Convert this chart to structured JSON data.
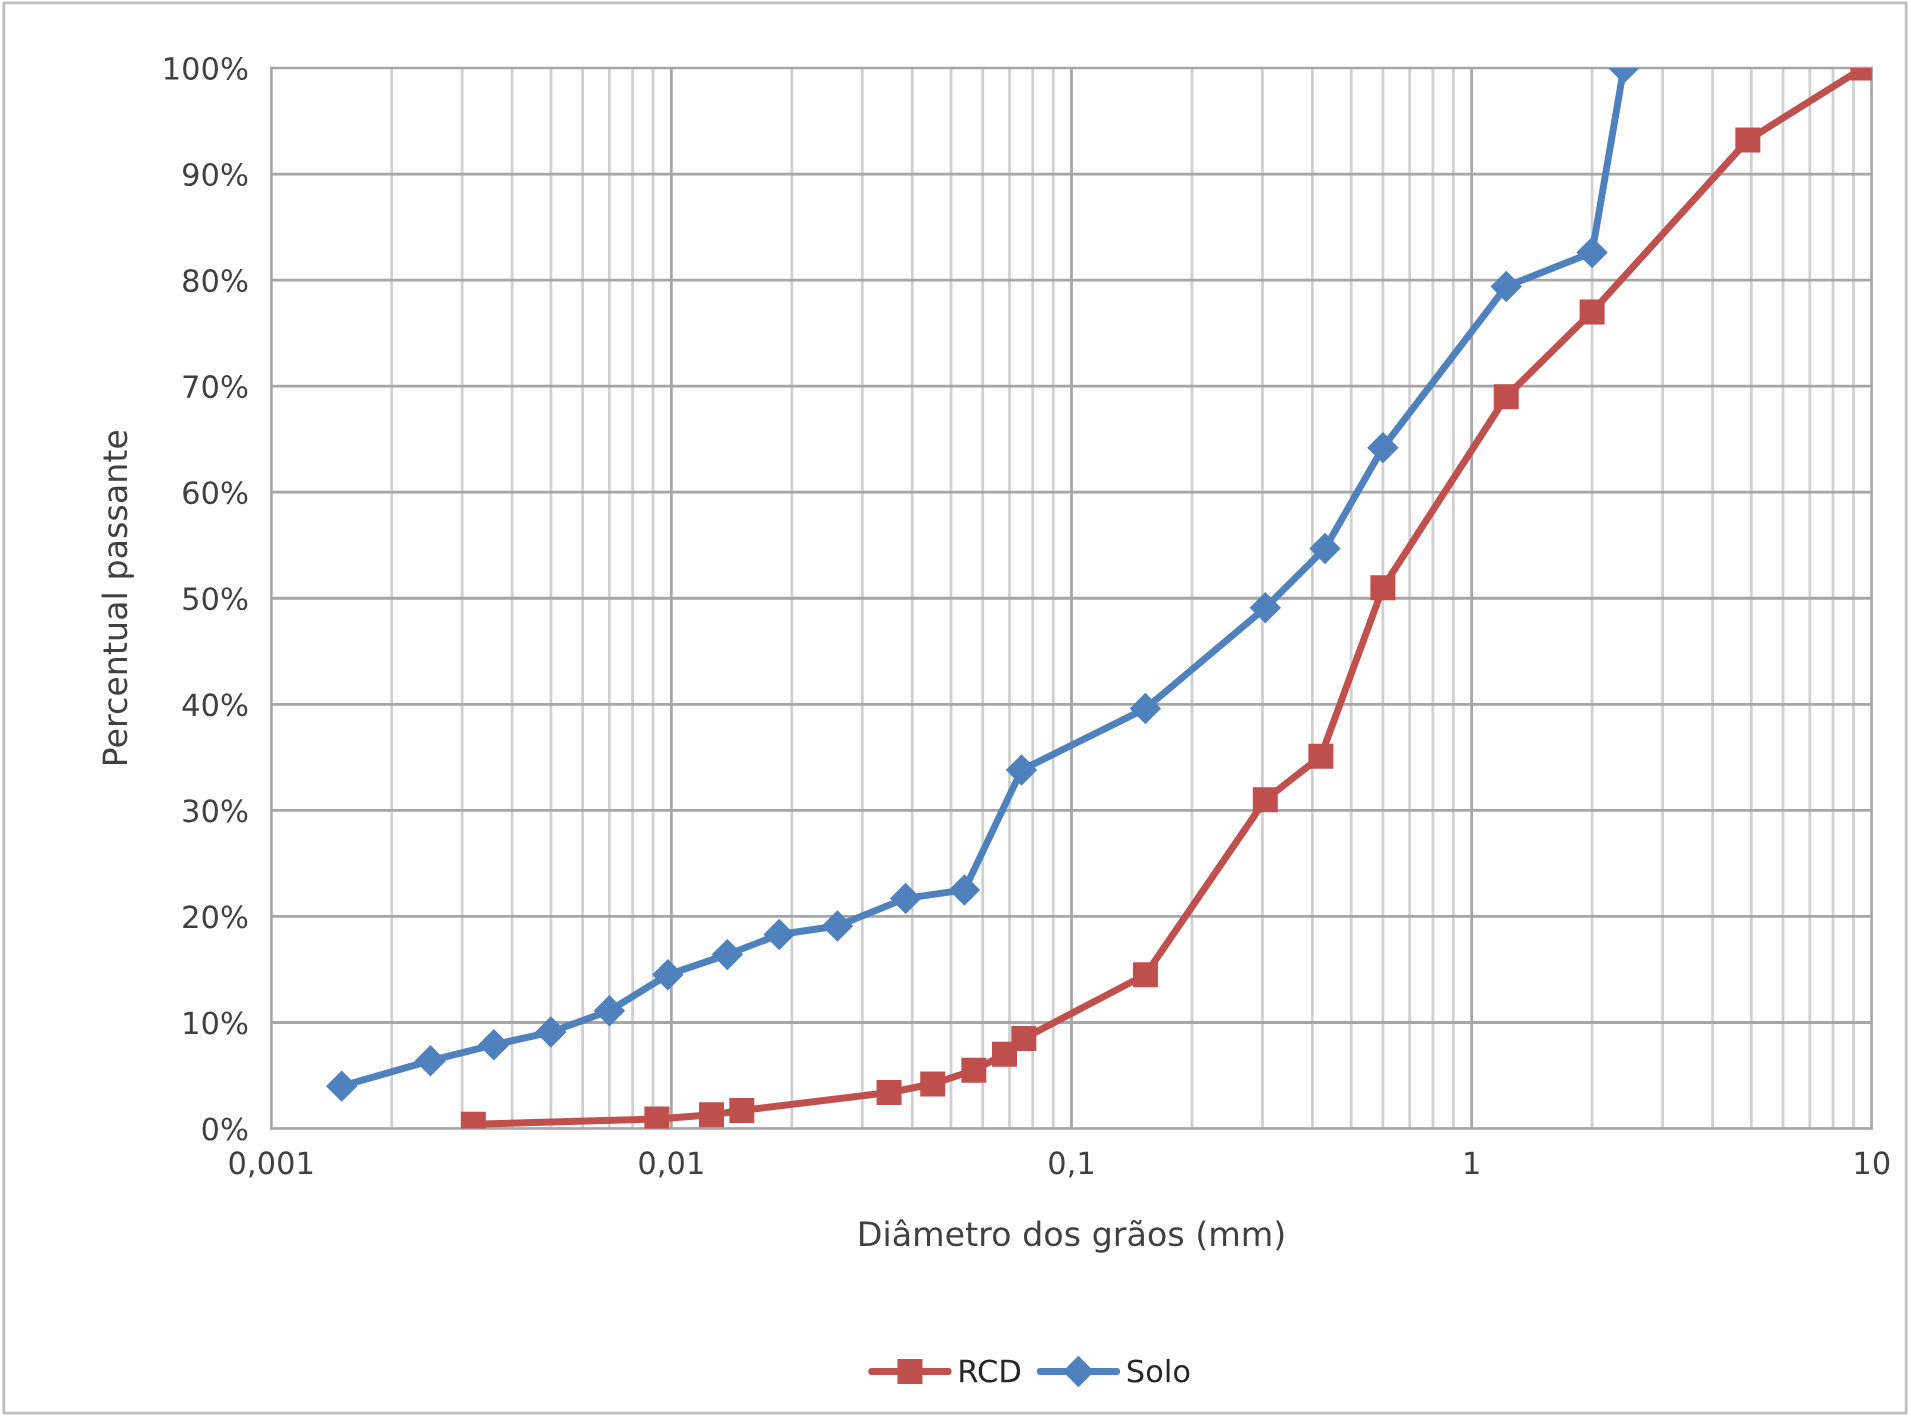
{
  "chart_data": {
    "type": "line",
    "xlabel": "Diâmetro dos grãos (mm)",
    "ylabel": "Percentual passante",
    "log": "x",
    "grid": true,
    "legend": "bottom",
    "xlim": [
      0.001,
      10
    ],
    "xticks": [
      {
        "value": 0.001,
        "label": "0,001"
      },
      {
        "value": 0.01,
        "label": "0,01"
      },
      {
        "value": 0.1,
        "label": "0,1"
      },
      {
        "value": 1,
        "label": "1"
      },
      {
        "value": 10,
        "label": "10"
      }
    ],
    "ylim": [
      0,
      100
    ],
    "yticks": [
      {
        "value": 0,
        "label": "0%"
      },
      {
        "value": 10,
        "label": "10%"
      },
      {
        "value": 20,
        "label": "20%"
      },
      {
        "value": 30,
        "label": "30%"
      },
      {
        "value": 40,
        "label": "40%"
      },
      {
        "value": 50,
        "label": "50%"
      },
      {
        "value": 60,
        "label": "60%"
      },
      {
        "value": 70,
        "label": "70%"
      },
      {
        "value": 80,
        "label": "80%"
      },
      {
        "value": 90,
        "label": "90%"
      },
      {
        "value": 100,
        "label": "100%"
      }
    ],
    "series": [
      {
        "name": "RCD",
        "color": "#c0504d",
        "marker": "square",
        "x": [
          0.0032,
          0.0092,
          0.0126,
          0.015,
          0.035,
          0.045,
          0.057,
          0.068,
          0.076,
          0.153,
          0.305,
          0.42,
          0.6,
          1.22,
          2.0,
          4.9,
          9.5
        ],
        "values": [
          0.4,
          0.9,
          1.3,
          1.7,
          3.4,
          4.2,
          5.5,
          7.0,
          8.5,
          14.5,
          31,
          35.1,
          51,
          69,
          77,
          93.2,
          100
        ]
      },
      {
        "name": "Solo",
        "color": "#4f81bd",
        "marker": "diamond",
        "x": [
          0.0015,
          0.0025,
          0.0036,
          0.005,
          0.007,
          0.0098,
          0.0138,
          0.0186,
          0.026,
          0.0385,
          0.054,
          0.075,
          0.153,
          0.305,
          0.43,
          0.6,
          1.22,
          2.0,
          2.4
        ],
        "values": [
          4.0,
          6.4,
          7.9,
          9.1,
          11.1,
          14.5,
          16.4,
          18.3,
          19.1,
          21.7,
          22.5,
          33.8,
          39.6,
          49.1,
          54.7,
          64.2,
          79.4,
          82.6,
          100
        ]
      }
    ]
  }
}
